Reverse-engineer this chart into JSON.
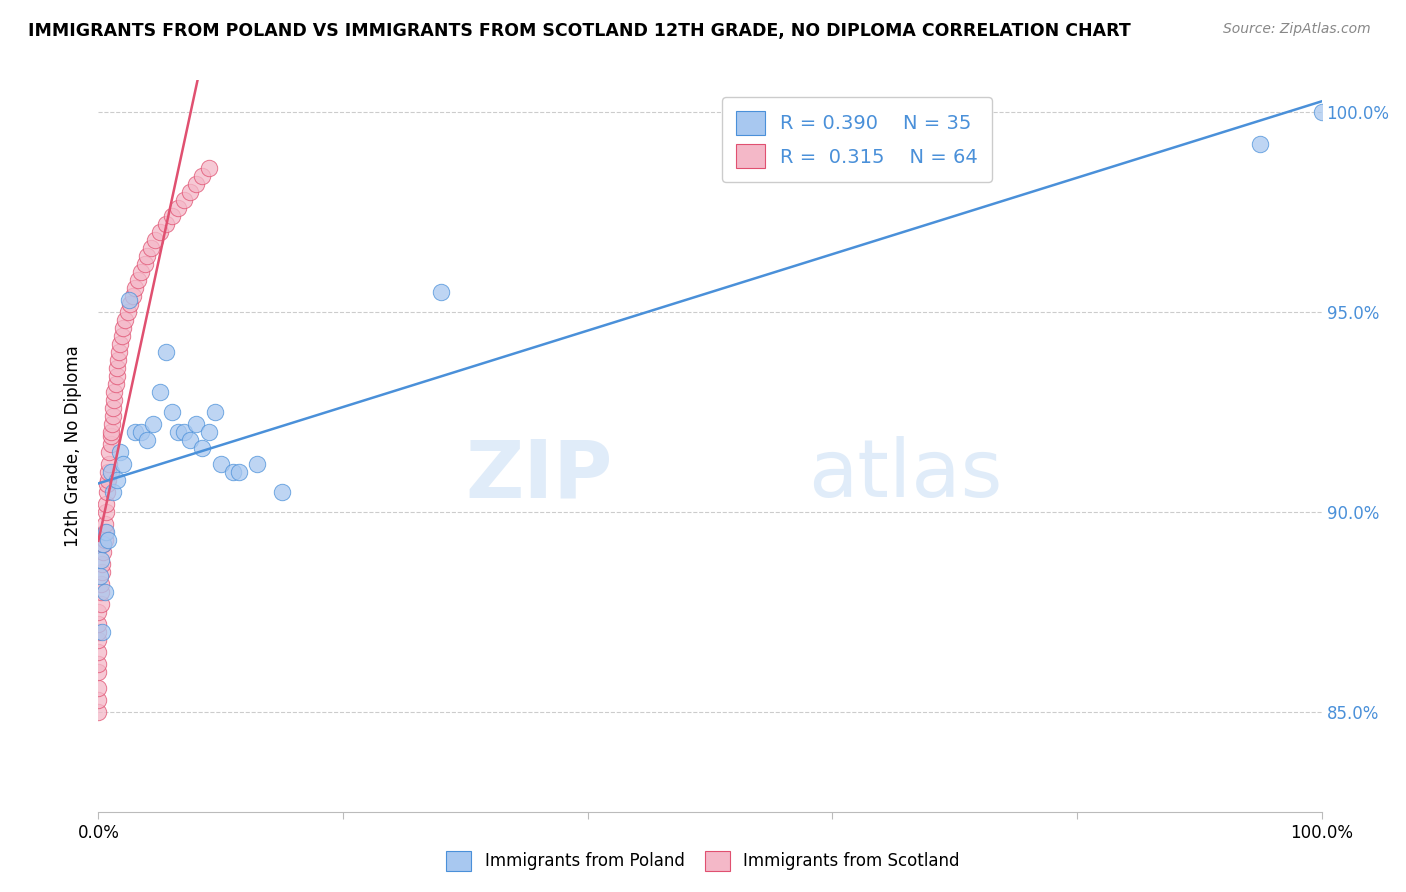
{
  "title": "IMMIGRANTS FROM POLAND VS IMMIGRANTS FROM SCOTLAND 12TH GRADE, NO DIPLOMA CORRELATION CHART",
  "source": "Source: ZipAtlas.com",
  "ylabel": "12th Grade, No Diploma",
  "legend_label1": "Immigrants from Poland",
  "legend_label2": "Immigrants from Scotland",
  "color_poland": "#a8c8f0",
  "color_scotland": "#f4b8c8",
  "line_color_poland": "#4a90d9",
  "line_color_scotland": "#e05070",
  "watermark_zip": "ZIP",
  "watermark_atlas": "atlas",
  "background_color": "#ffffff",
  "grid_color": "#cccccc",
  "poland_x": [
    0.001,
    0.002,
    0.003,
    0.004,
    0.005,
    0.006,
    0.008,
    0.01,
    0.012,
    0.015,
    0.018,
    0.02,
    0.025,
    0.03,
    0.035,
    0.04,
    0.045,
    0.05,
    0.055,
    0.06,
    0.065,
    0.07,
    0.075,
    0.08,
    0.085,
    0.09,
    0.095,
    0.1,
    0.11,
    0.115,
    0.13,
    0.15,
    0.28,
    0.95,
    1.0
  ],
  "poland_y": [
    0.884,
    0.888,
    0.87,
    0.892,
    0.88,
    0.895,
    0.893,
    0.91,
    0.905,
    0.908,
    0.915,
    0.912,
    0.953,
    0.92,
    0.92,
    0.918,
    0.922,
    0.93,
    0.94,
    0.925,
    0.92,
    0.92,
    0.918,
    0.922,
    0.916,
    0.92,
    0.925,
    0.912,
    0.91,
    0.91,
    0.912,
    0.905,
    0.955,
    0.992,
    1.0
  ],
  "scotland_x": [
    0.0,
    0.0,
    0.0,
    0.0,
    0.0,
    0.0,
    0.0,
    0.0,
    0.0,
    0.0,
    0.002,
    0.002,
    0.002,
    0.003,
    0.003,
    0.004,
    0.004,
    0.005,
    0.005,
    0.005,
    0.006,
    0.006,
    0.007,
    0.007,
    0.008,
    0.008,
    0.009,
    0.009,
    0.01,
    0.01,
    0.01,
    0.011,
    0.012,
    0.012,
    0.013,
    0.013,
    0.014,
    0.015,
    0.015,
    0.016,
    0.017,
    0.018,
    0.019,
    0.02,
    0.022,
    0.024,
    0.026,
    0.028,
    0.03,
    0.032,
    0.035,
    0.038,
    0.04,
    0.043,
    0.046,
    0.05,
    0.055,
    0.06,
    0.065,
    0.07,
    0.075,
    0.08,
    0.085,
    0.09
  ],
  "scotland_y": [
    0.85,
    0.853,
    0.856,
    0.86,
    0.862,
    0.865,
    0.868,
    0.87,
    0.872,
    0.875,
    0.877,
    0.88,
    0.882,
    0.885,
    0.887,
    0.89,
    0.892,
    0.893,
    0.895,
    0.897,
    0.9,
    0.902,
    0.905,
    0.907,
    0.908,
    0.91,
    0.912,
    0.915,
    0.917,
    0.919,
    0.92,
    0.922,
    0.924,
    0.926,
    0.928,
    0.93,
    0.932,
    0.934,
    0.936,
    0.938,
    0.94,
    0.942,
    0.944,
    0.946,
    0.948,
    0.95,
    0.952,
    0.954,
    0.956,
    0.958,
    0.96,
    0.962,
    0.964,
    0.966,
    0.968,
    0.97,
    0.972,
    0.974,
    0.976,
    0.978,
    0.98,
    0.982,
    0.984,
    0.986
  ],
  "xlim": [
    0.0,
    1.0
  ],
  "ylim": [
    0.825,
    1.008
  ],
  "yticks": [
    0.85,
    0.9,
    0.95,
    1.0
  ],
  "ytick_labels": [
    "85.0%",
    "90.0%",
    "95.0%",
    "100.0%"
  ]
}
